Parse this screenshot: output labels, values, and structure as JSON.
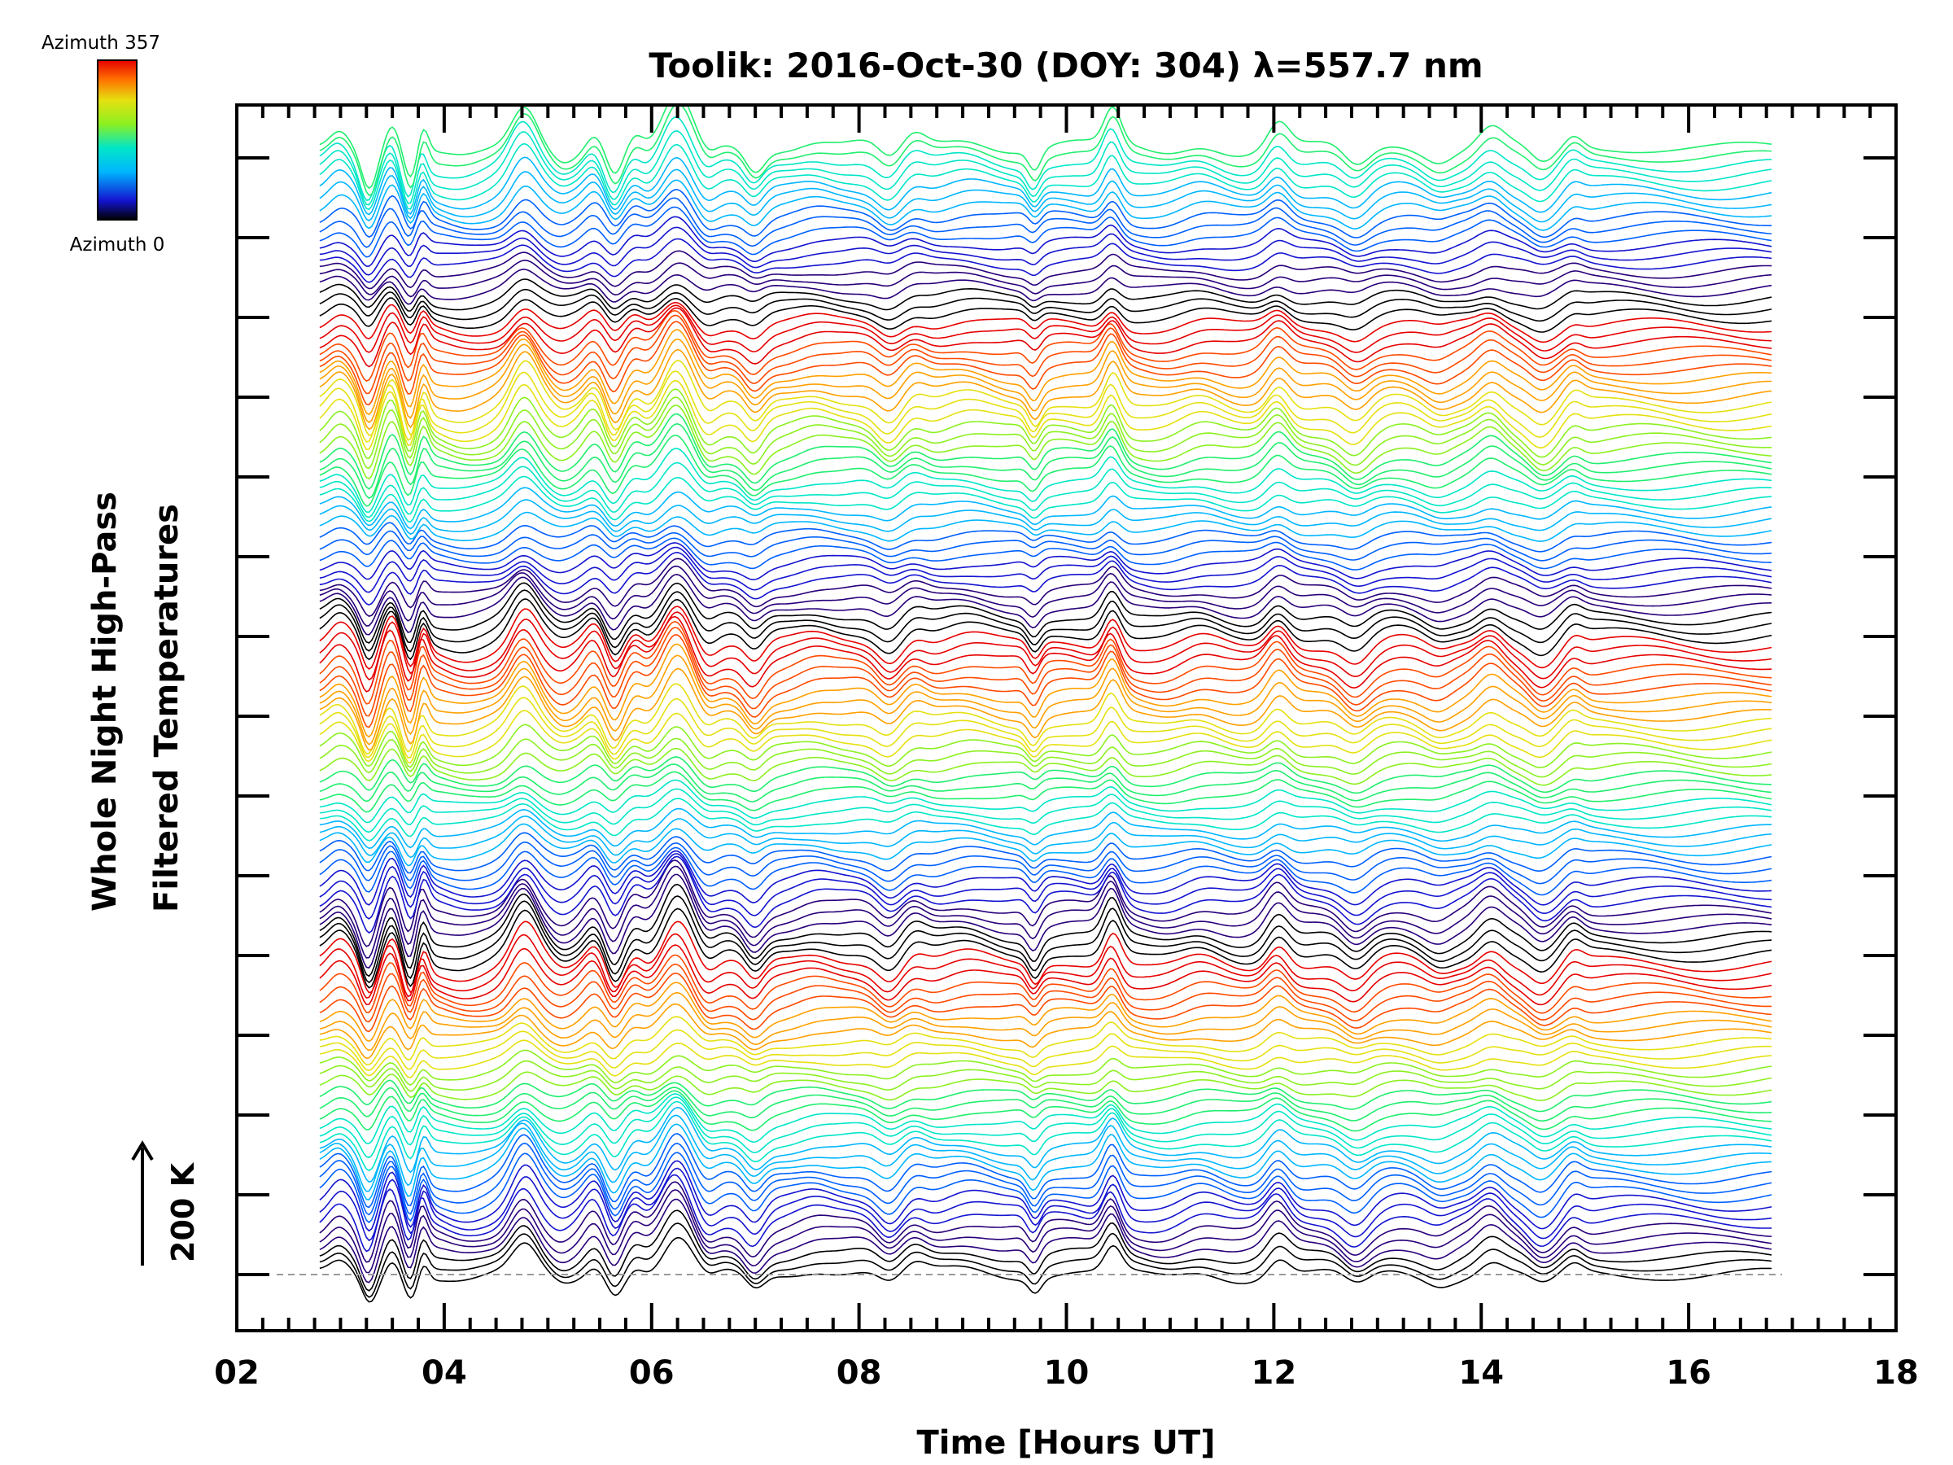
{
  "chart_data": {
    "type": "line",
    "title": "Toolik: 2016-Oct-30 (DOY: 304) λ=557.7 nm",
    "xlabel": "Time [Hours UT]",
    "ylabel_line1": "Whole Night High-Pass",
    "ylabel_line2": "Filtered Temperatures",
    "xlim": [
      2,
      18
    ],
    "x_tick_labels": [
      "02",
      "04",
      "06",
      "08",
      "10",
      "12",
      "14",
      "16",
      "18"
    ],
    "x_ticks": [
      2,
      4,
      6,
      8,
      10,
      12,
      14,
      16,
      18
    ],
    "data_start_hour": 2.8,
    "data_end_hour": 16.8,
    "scale_bar_label": "200 K",
    "colorbar_top_label": "Azimuth 357",
    "colorbar_bottom_label": "Azimuth 0",
    "colorbar_azimuth_range": [
      0,
      357
    ],
    "series_count": 128,
    "series_spacing_note": "each azimuth trace offset vertically; color cycles through the colormap",
    "baseline_dashed": true,
    "colormap": [
      "#000000",
      "#28007a",
      "#1414d0",
      "#0060ff",
      "#00b6ff",
      "#00e6c8",
      "#20ee6e",
      "#8cf020",
      "#e6e010",
      "#ffa000",
      "#ff4a00",
      "#e60000"
    ]
  }
}
